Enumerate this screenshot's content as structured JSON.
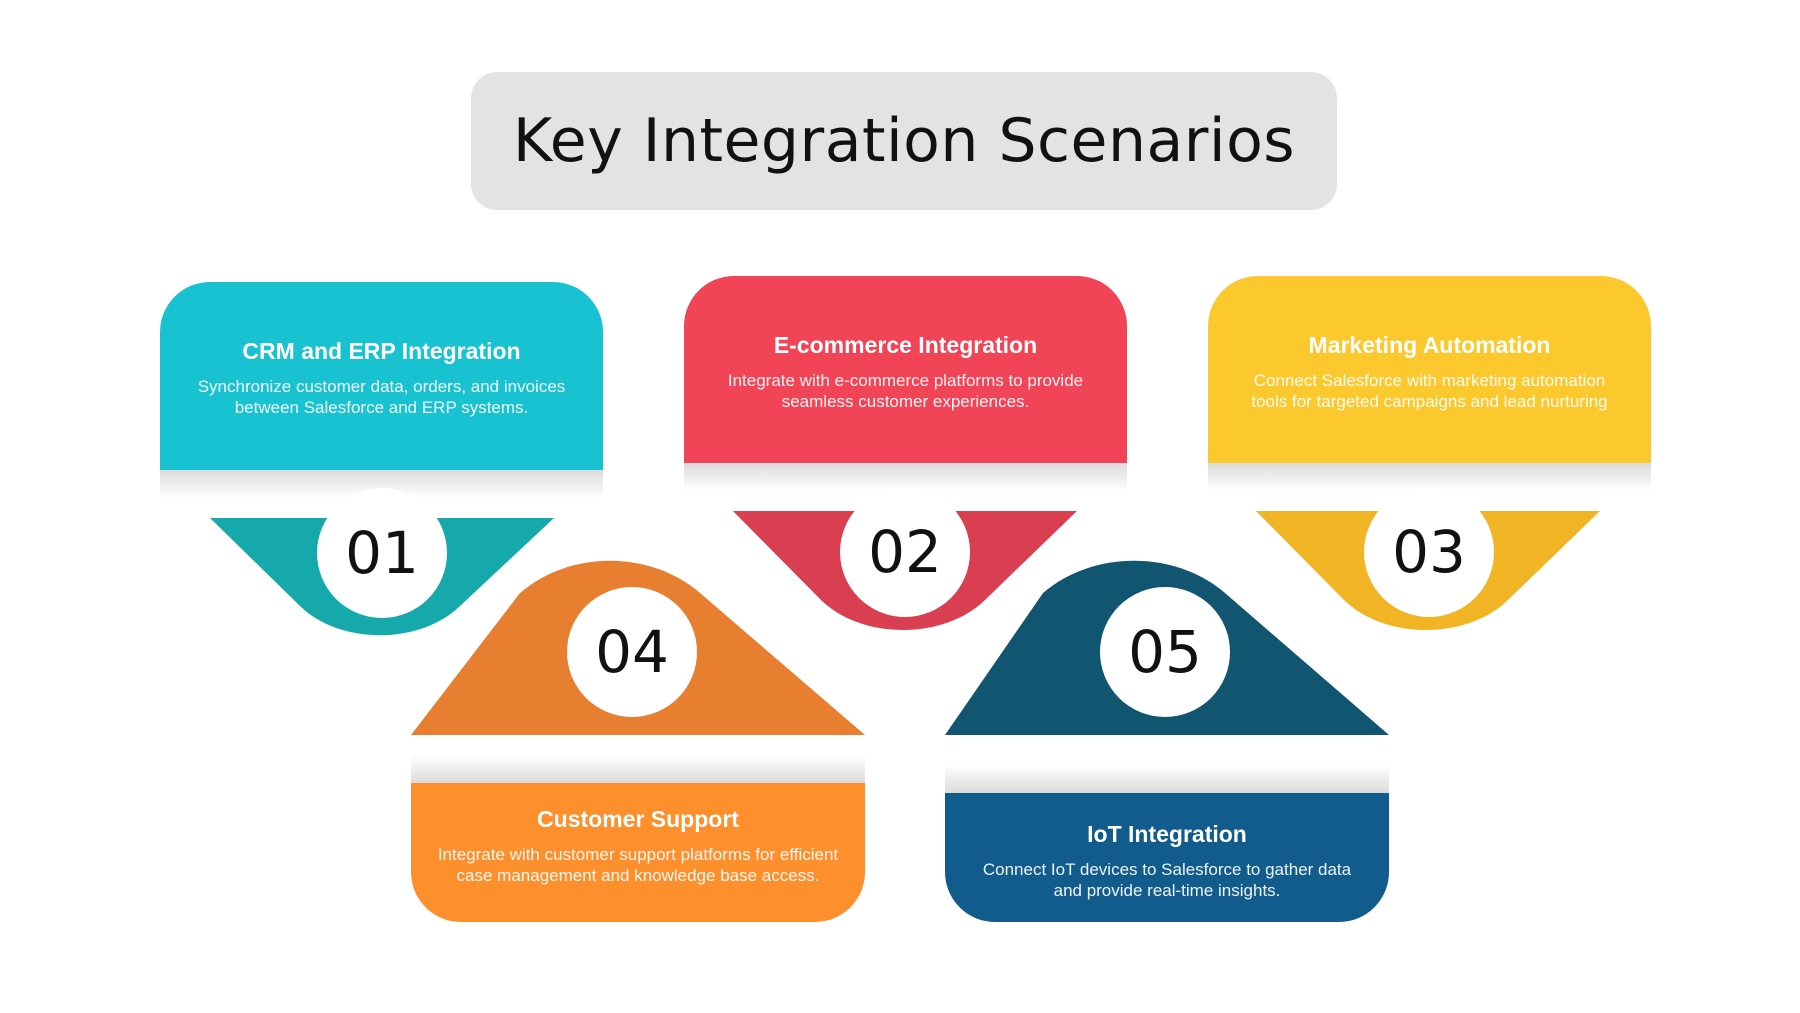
{
  "title": "Key Integration Scenarios",
  "scenarios": [
    {
      "number": "01",
      "title": "CRM and ERP Integration",
      "description": "Synchronize customer data, orders, and invoices between Salesforce and ERP systems.",
      "card_color": "#19c2d1",
      "shape_color": "#16a9ab"
    },
    {
      "number": "02",
      "title": "E-commerce Integration",
      "description": "Integrate with e-commerce platforms to provide seamless customer experiences.",
      "card_color": "#f14456",
      "shape_color": "#d93e51"
    },
    {
      "number": "03",
      "title": "Marketing Automation",
      "description": "Connect Salesforce with marketing automation tools for targeted campaigns and lead nurturing",
      "card_color": "#fbc82d",
      "shape_color": "#f1b424"
    },
    {
      "number": "04",
      "title": "Customer Support",
      "description": "Integrate with customer support platforms for efficient case management and knowledge base access.",
      "card_color": "#fd8f2d",
      "shape_color": "#e87f30"
    },
    {
      "number": "05",
      "title": "IoT Integration",
      "description": "Connect IoT devices to Salesforce to gather data and provide real-time insights.",
      "card_color": "#115c8c",
      "shape_color": "#115570"
    }
  ]
}
